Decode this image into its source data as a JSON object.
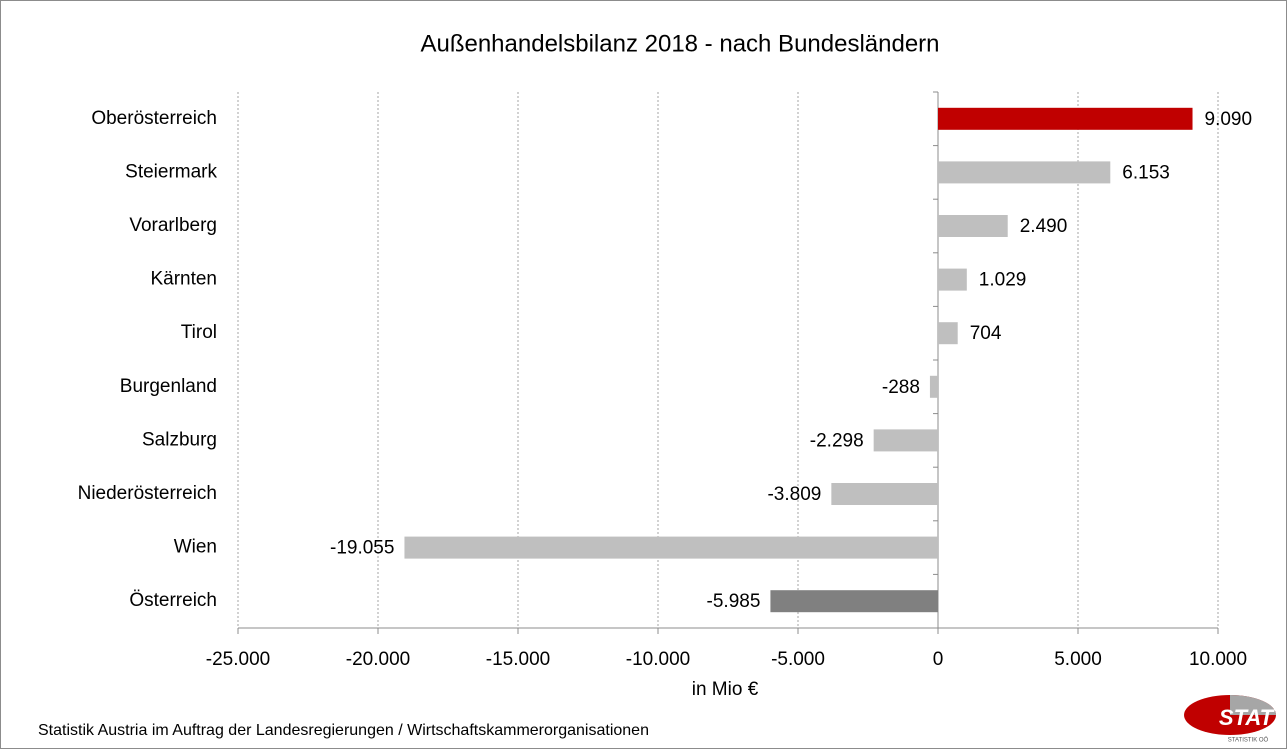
{
  "chart_data": {
    "type": "bar",
    "orientation": "horizontal",
    "title": "Außenhandelsbilanz 2018 - nach Bundesländern",
    "xlabel": "in Mio €",
    "source": "Statistik Austria im Auftrag der Landesregierungen / Wirtschaftskammerorganisationen",
    "categories": [
      "Oberösterreich",
      "Steiermark",
      "Vorarlberg",
      "Kärnten",
      "Tirol",
      "Burgenland",
      "Salzburg",
      "Niederösterreich",
      "Wien",
      "Österreich"
    ],
    "values": [
      9090,
      6153,
      2490,
      1029,
      704,
      -288,
      -2298,
      -3809,
      -19055,
      -5985
    ],
    "value_labels": [
      "9.090",
      "6.153",
      "2.490",
      "1.029",
      "704",
      "-288",
      "-2.298",
      "-3.809",
      "-19.055",
      "-5.985"
    ],
    "colors": [
      "#c00000",
      "#bfbfbf",
      "#bfbfbf",
      "#bfbfbf",
      "#bfbfbf",
      "#bfbfbf",
      "#bfbfbf",
      "#bfbfbf",
      "#bfbfbf",
      "#808080"
    ],
    "xlim": [
      -25000,
      10000
    ],
    "xticks": [
      {
        "value": -25000,
        "label": "-25.000"
      },
      {
        "value": -20000,
        "label": "-20.000"
      },
      {
        "value": -15000,
        "label": "-15.000"
      },
      {
        "value": -10000,
        "label": "-10.000"
      },
      {
        "value": -5000,
        "label": "-5.000"
      },
      0,
      {
        "value": 5000,
        "label": "5.000"
      },
      {
        "value": 10000,
        "label": "10.000"
      }
    ],
    "grid": true,
    "logo": {
      "text": "STAT",
      "subtext": "STATISTIK OÖ"
    }
  }
}
